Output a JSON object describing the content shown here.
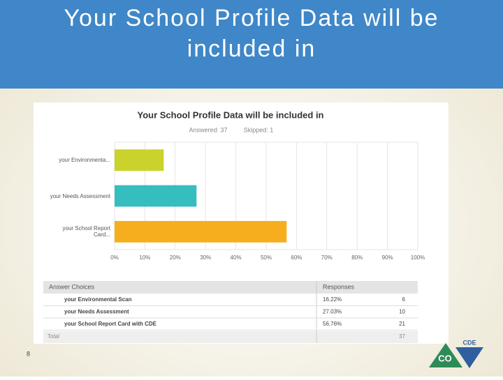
{
  "slide_title": "Your School Profile Data will be included in",
  "chart_data": {
    "type": "bar",
    "orientation": "horizontal",
    "title": "Your School Profile Data will be included in",
    "answered": "Answered: 37",
    "skipped": "Skipped: 1",
    "categories": [
      "your Environmenta...",
      "your Needs Assessment",
      "your School Report Card..."
    ],
    "values": [
      16.22,
      27.03,
      56.76
    ],
    "colors": [
      "#c9d32c",
      "#35bdc0",
      "#f6ae1f"
    ],
    "xlim": [
      0,
      100
    ],
    "xticks": [
      {
        "value": 0,
        "label": "0%"
      },
      {
        "value": 10,
        "label": "10%"
      },
      {
        "value": 20,
        "label": "20%"
      },
      {
        "value": 30,
        "label": "30%"
      },
      {
        "value": 40,
        "label": "40%"
      },
      {
        "value": 50,
        "label": "50%"
      },
      {
        "value": 60,
        "label": "60%"
      },
      {
        "value": 70,
        "label": "70%"
      },
      {
        "value": 80,
        "label": "80%"
      },
      {
        "value": 90,
        "label": "90%"
      },
      {
        "value": 100,
        "label": "100%"
      }
    ],
    "grid": true
  },
  "table": {
    "header": [
      "Answer Choices",
      "Responses"
    ],
    "rows": [
      [
        "your Environmental Scan",
        "16.22%",
        "6"
      ],
      [
        "your Needs Assessment",
        "27.03%",
        "10"
      ],
      [
        "your School Report Card with CDE",
        "56.76%",
        "21"
      ]
    ],
    "total": [
      "Total",
      "37"
    ]
  },
  "page_number": "8",
  "logo": {
    "top": "CDE",
    "bottom": "CO"
  }
}
